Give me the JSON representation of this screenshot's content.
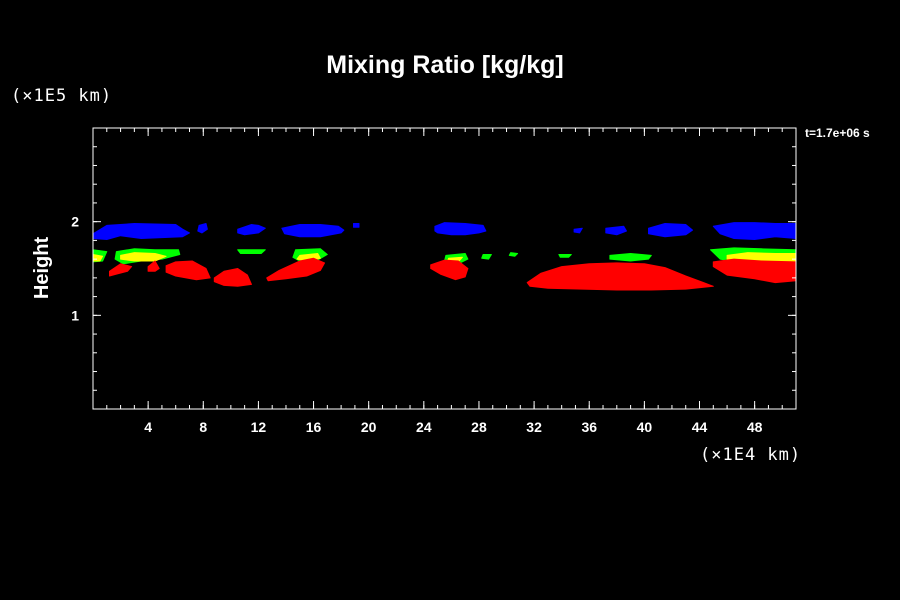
{
  "chart_data": {
    "type": "contour",
    "title": "Mixing Ratio [kg/kg]",
    "ylabel": "Height",
    "x_unit_label": "(×1E4 km)",
    "y_unit_label": "(×1E5 km)",
    "time_label": "t=1.7e+06 s",
    "xlim": [
      0,
      51
    ],
    "ylim": [
      0,
      3
    ],
    "x_ticks": [
      4,
      8,
      12,
      16,
      20,
      24,
      28,
      32,
      36,
      40,
      44,
      48
    ],
    "y_ticks": [
      1,
      2
    ],
    "x_minor_step": 1,
    "y_minor_step": 0.2,
    "colors": {
      "background": "#000000",
      "axes": "#ffffff",
      "level_blue": "#0000ff",
      "level_green": "#00ff00",
      "level_yellow": "#ffff00",
      "level_red": "#ff0000"
    },
    "regions": [
      {
        "level": "blue",
        "x": [
          0,
          1,
          3,
          6,
          6.5,
          7,
          6.5,
          5,
          3.5,
          2,
          1,
          0
        ],
        "y": [
          1.87,
          1.96,
          1.98,
          1.97,
          1.92,
          1.88,
          1.84,
          1.83,
          1.82,
          1.85,
          1.81,
          1.82
        ]
      },
      {
        "level": "blue",
        "x": [
          7.7,
          8.2,
          8.3,
          7.9,
          7.6
        ],
        "y": [
          1.96,
          1.98,
          1.92,
          1.88,
          1.9
        ]
      },
      {
        "level": "blue",
        "x": [
          10.5,
          11.5,
          12,
          12.5,
          12,
          11,
          10.5
        ],
        "y": [
          1.92,
          1.97,
          1.96,
          1.93,
          1.88,
          1.86,
          1.88
        ]
      },
      {
        "level": "blue",
        "x": [
          13.7,
          15,
          16.5,
          17.8,
          18.2,
          18,
          16.5,
          15,
          13.9
        ],
        "y": [
          1.93,
          1.97,
          1.97,
          1.95,
          1.91,
          1.88,
          1.84,
          1.84,
          1.87
        ]
      },
      {
        "level": "blue",
        "x": [
          18.9,
          19.3,
          19.3,
          18.9
        ],
        "y": [
          1.98,
          1.98,
          1.94,
          1.94
        ]
      },
      {
        "level": "blue",
        "x": [
          24.8,
          25.5,
          27,
          28.3,
          28.5,
          28,
          27,
          26,
          25,
          24.8
        ],
        "y": [
          1.95,
          1.99,
          1.98,
          1.96,
          1.9,
          1.88,
          1.86,
          1.86,
          1.88,
          1.9
        ]
      },
      {
        "level": "blue",
        "x": [
          34.9,
          35.5,
          35.3,
          34.9
        ],
        "y": [
          1.92,
          1.93,
          1.88,
          1.89
        ]
      },
      {
        "level": "blue",
        "x": [
          37.2,
          38.5,
          38.7,
          38,
          37.2
        ],
        "y": [
          1.93,
          1.95,
          1.9,
          1.86,
          1.88
        ]
      },
      {
        "level": "blue",
        "x": [
          40.3,
          41.5,
          43,
          43.5,
          43,
          41.5,
          40.3
        ],
        "y": [
          1.93,
          1.98,
          1.97,
          1.91,
          1.86,
          1.84,
          1.87
        ]
      },
      {
        "level": "blue",
        "x": [
          45,
          46.5,
          48,
          49.5,
          51,
          51,
          49.5,
          48,
          46.5,
          45.5
        ],
        "y": [
          1.95,
          1.99,
          1.99,
          1.98,
          1.98,
          1.82,
          1.84,
          1.81,
          1.82,
          1.87
        ]
      },
      {
        "level": "green",
        "x": [
          0,
          1,
          0.7,
          0
        ],
        "y": [
          1.7,
          1.68,
          1.58,
          1.57
        ]
      },
      {
        "level": "green",
        "x": [
          1.7,
          3,
          4.5,
          6.2,
          6.3,
          5,
          3.5,
          2.2,
          1.6
        ],
        "y": [
          1.68,
          1.71,
          1.7,
          1.7,
          1.65,
          1.6,
          1.58,
          1.55,
          1.6
        ]
      },
      {
        "level": "green",
        "x": [
          10.5,
          12.5,
          12.2,
          10.7
        ],
        "y": [
          1.7,
          1.7,
          1.66,
          1.66
        ]
      },
      {
        "level": "green",
        "x": [
          14.7,
          16.5,
          17,
          16.3,
          15,
          14.5
        ],
        "y": [
          1.7,
          1.71,
          1.65,
          1.59,
          1.58,
          1.62
        ]
      },
      {
        "level": "green",
        "x": [
          25.6,
          27,
          27.2,
          26.5,
          25.5
        ],
        "y": [
          1.64,
          1.66,
          1.6,
          1.55,
          1.58
        ]
      },
      {
        "level": "green",
        "x": [
          28.3,
          28.9,
          28.7,
          28.2
        ],
        "y": [
          1.65,
          1.65,
          1.6,
          1.61
        ]
      },
      {
        "level": "green",
        "x": [
          30.3,
          30.8,
          30.6,
          30.2
        ],
        "y": [
          1.67,
          1.66,
          1.63,
          1.64
        ]
      },
      {
        "level": "green",
        "x": [
          33.8,
          34.7,
          34.5,
          33.9
        ],
        "y": [
          1.65,
          1.65,
          1.62,
          1.62
        ]
      },
      {
        "level": "green",
        "x": [
          37.5,
          39,
          40.5,
          40.3,
          39,
          37.5
        ],
        "y": [
          1.64,
          1.66,
          1.64,
          1.6,
          1.58,
          1.6
        ]
      },
      {
        "level": "green",
        "x": [
          44.8,
          46.5,
          48.5,
          51,
          51,
          49,
          47,
          45.5
        ],
        "y": [
          1.7,
          1.72,
          1.71,
          1.7,
          1.52,
          1.55,
          1.56,
          1.6
        ]
      },
      {
        "level": "yellow",
        "x": [
          0,
          0.7,
          0.5,
          0
        ],
        "y": [
          1.65,
          1.63,
          1.58,
          1.58
        ]
      },
      {
        "level": "yellow",
        "x": [
          2,
          3,
          4.5,
          5.3,
          4.5,
          3,
          2
        ],
        "y": [
          1.64,
          1.67,
          1.66,
          1.63,
          1.58,
          1.58,
          1.6
        ]
      },
      {
        "level": "yellow",
        "x": [
          15,
          16.3,
          16.5,
          15.5,
          14.8
        ],
        "y": [
          1.64,
          1.66,
          1.61,
          1.58,
          1.6
        ]
      },
      {
        "level": "yellow",
        "x": [
          25.8,
          26.8,
          26.5,
          25.7
        ],
        "y": [
          1.61,
          1.62,
          1.57,
          1.57
        ]
      },
      {
        "level": "yellow",
        "x": [
          46,
          47.5,
          49.5,
          51,
          51,
          49.5,
          47.5,
          46
        ],
        "y": [
          1.64,
          1.67,
          1.66,
          1.66,
          1.55,
          1.56,
          1.57,
          1.6
        ]
      },
      {
        "level": "red",
        "x": [
          1.2,
          2,
          2.8,
          2.5,
          1.7,
          1.2
        ],
        "y": [
          1.47,
          1.55,
          1.52,
          1.47,
          1.44,
          1.42
        ]
      },
      {
        "level": "red",
        "x": [
          4,
          4.5,
          4.8,
          4.5,
          4
        ],
        "y": [
          1.52,
          1.58,
          1.5,
          1.47,
          1.47
        ]
      },
      {
        "level": "red",
        "x": [
          5.3,
          6,
          7.2,
          8.2,
          8.5,
          7.5,
          6,
          5.3
        ],
        "y": [
          1.53,
          1.57,
          1.58,
          1.5,
          1.4,
          1.38,
          1.42,
          1.46
        ]
      },
      {
        "level": "red",
        "x": [
          8.8,
          9.5,
          10.5,
          11.2,
          11.5,
          10.5,
          9.5,
          8.8
        ],
        "y": [
          1.4,
          1.47,
          1.5,
          1.43,
          1.33,
          1.31,
          1.32,
          1.36
        ]
      },
      {
        "level": "red",
        "x": [
          12.6,
          13.5,
          15,
          16,
          16.8,
          16.5,
          15.5,
          14,
          12.7
        ],
        "y": [
          1.4,
          1.48,
          1.58,
          1.61,
          1.56,
          1.48,
          1.42,
          1.39,
          1.37
        ]
      },
      {
        "level": "red",
        "x": [
          24.5,
          25.5,
          26.5,
          27.2,
          27,
          26.3,
          25.2,
          24.5
        ],
        "y": [
          1.54,
          1.59,
          1.58,
          1.5,
          1.41,
          1.38,
          1.44,
          1.5
        ]
      },
      {
        "level": "red",
        "x": [
          31.5,
          32.5,
          34,
          36,
          38,
          40,
          41.5,
          43,
          44.3,
          45,
          43,
          40.5,
          38,
          35.5,
          33,
          31.7
        ],
        "y": [
          1.35,
          1.45,
          1.52,
          1.55,
          1.56,
          1.55,
          1.51,
          1.42,
          1.35,
          1.31,
          1.28,
          1.27,
          1.27,
          1.28,
          1.29,
          1.31
        ]
      },
      {
        "level": "red",
        "x": [
          45,
          46.5,
          48.5,
          51,
          51,
          49.5,
          48,
          46,
          45
        ],
        "y": [
          1.57,
          1.6,
          1.58,
          1.57,
          1.37,
          1.35,
          1.39,
          1.43,
          1.52
        ]
      }
    ]
  }
}
